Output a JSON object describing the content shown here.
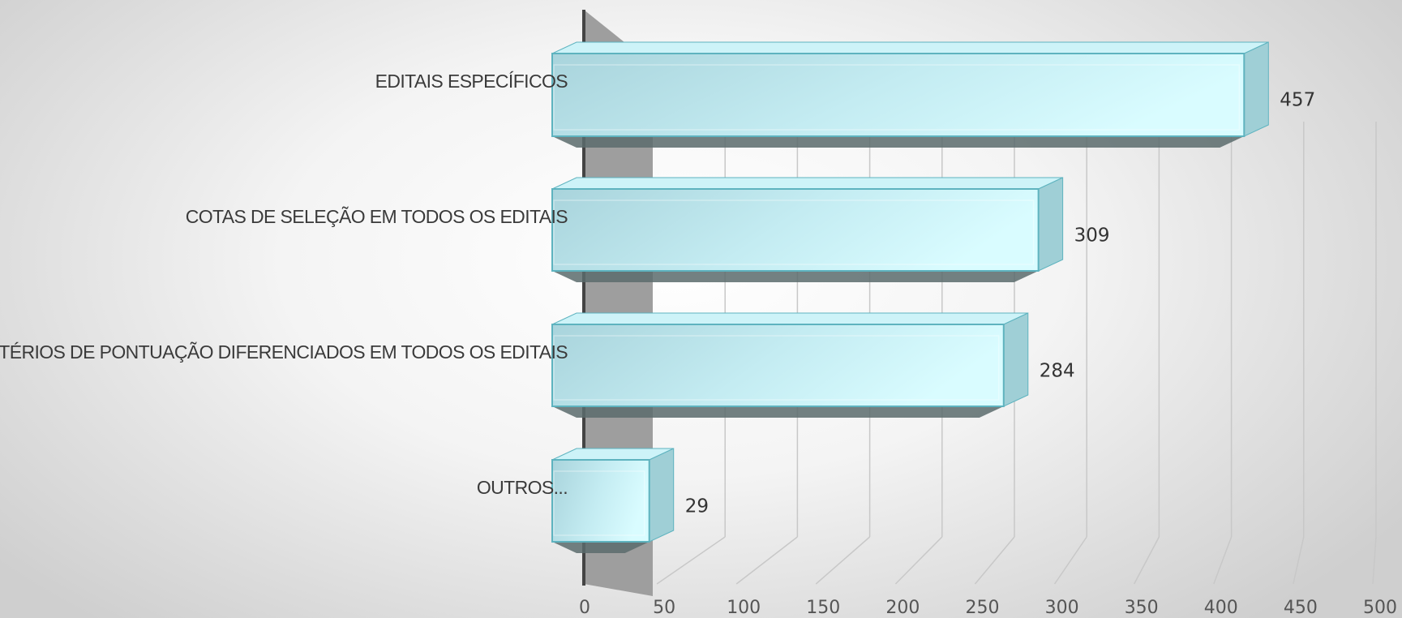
{
  "chart_data": {
    "type": "bar",
    "orientation": "horizontal",
    "style": "3d",
    "categories": [
      "EDITAIS ESPECÍFICOS",
      "COTAS DE SELEÇÃO EM TODOS OS EDITAIS",
      "CRITÉRIOS DE PONTUAÇÃO DIFERENCIADOS EM TODOS OS EDITAIS",
      "OUTROS..."
    ],
    "values": [
      457,
      309,
      284,
      29
    ],
    "data_labels": [
      "457",
      "309",
      "284",
      "29"
    ],
    "x_ticks": [
      "0",
      "50",
      "100",
      "150",
      "200",
      "250",
      "300",
      "350",
      "400",
      "450",
      "500"
    ],
    "xlim": [
      0,
      500
    ],
    "title": "",
    "xlabel": "",
    "ylabel": "",
    "grid": true,
    "legend": "none",
    "colors": {
      "bar_front": "#b2dfe6",
      "bar_highlight": "#d8fbff",
      "bar_edge": "#5eb3bf",
      "bar_top": "#cdf3f8",
      "bar_side": "#9fcfd6",
      "bar_bottom": "#5a6b6c",
      "back_wall": "#9e9e9e",
      "axis_edge": "#444444",
      "gridline": "#c8c8c8"
    }
  }
}
